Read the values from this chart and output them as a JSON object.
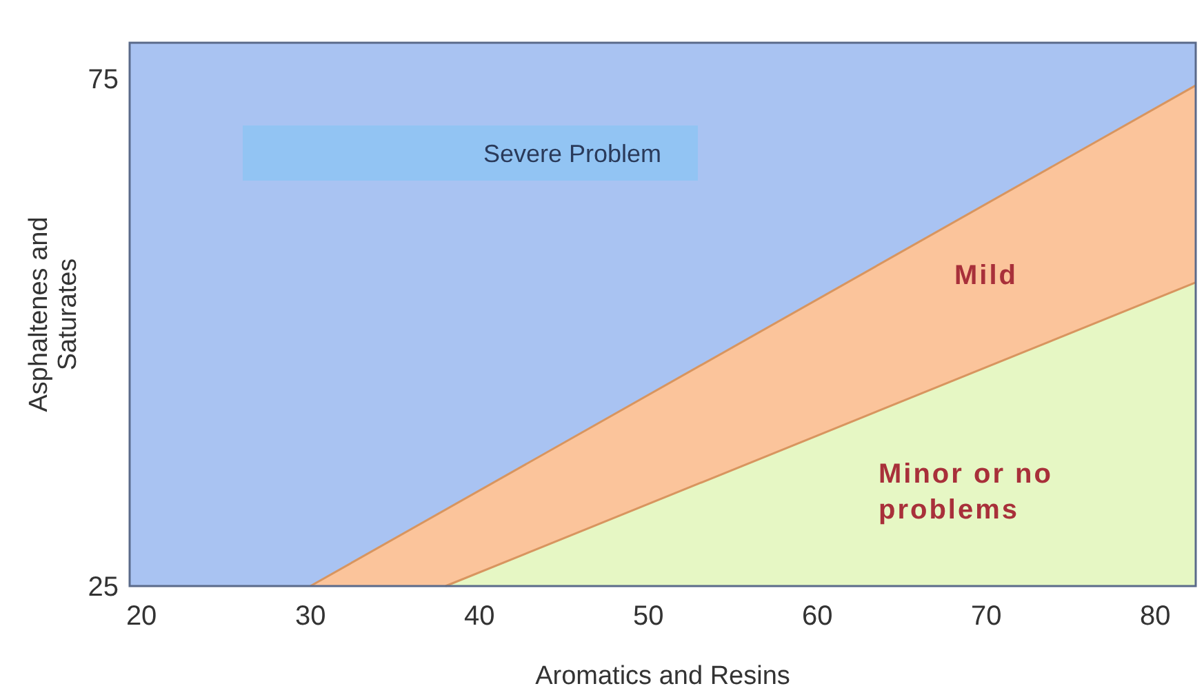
{
  "chart_data": {
    "type": "area",
    "xlabel": "Aromatics and Resins",
    "ylabel": "Asphaltenes and Saturates",
    "xlim": [
      19.3,
      82.4
    ],
    "ylim": [
      25,
      78.5
    ],
    "xticks": [
      20,
      30,
      40,
      50,
      60,
      70,
      80
    ],
    "yticks": [
      25,
      75
    ],
    "series": [
      {
        "name": "Mild",
        "color": "#fbc49b",
        "x": [
          30,
          82.4
        ],
        "values": [
          25,
          74.3
        ]
      },
      {
        "name": "Minor or no problems",
        "color": "#e6f7c4",
        "x": [
          38,
          82.4
        ],
        "values": [
          25,
          54.9
        ]
      }
    ],
    "annotations": [
      "Severe Problem"
    ]
  }
}
